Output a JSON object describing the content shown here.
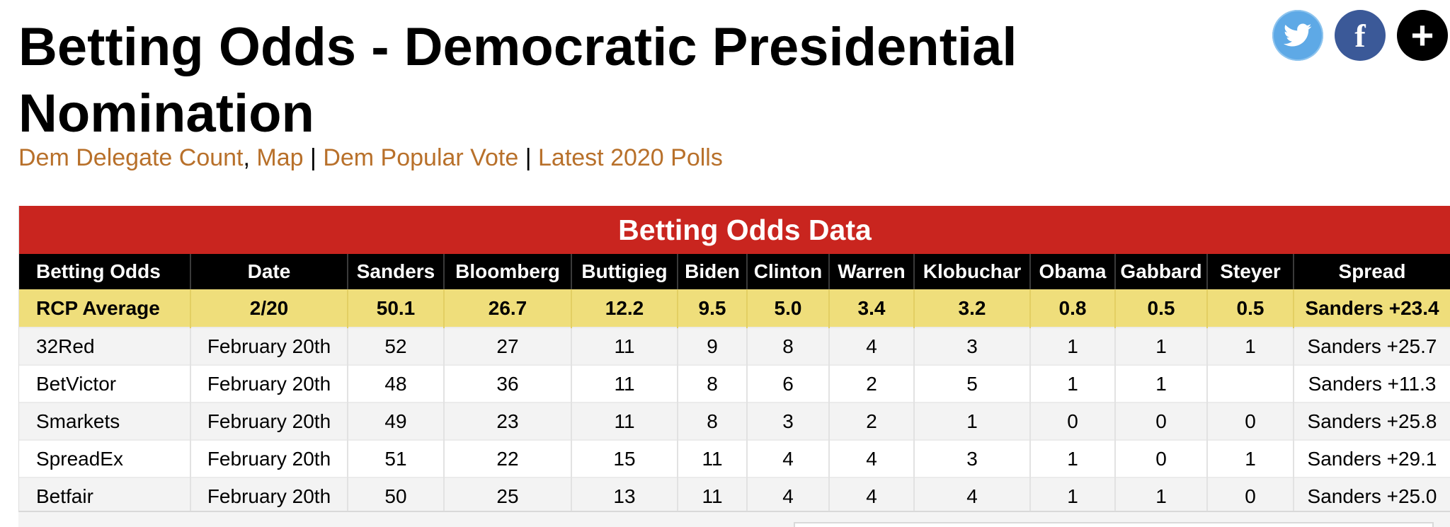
{
  "page": {
    "title": "Betting Odds - Democratic Presidential Nomination"
  },
  "subnav": {
    "links": [
      "Dem Delegate Count",
      "Map",
      "Dem Popular Vote",
      "Latest 2020 Polls"
    ],
    "sep_comma": ",",
    "sep_bar": "|"
  },
  "social": {
    "twitter_icon": "twitter-icon",
    "facebook_icon": "facebook-icon",
    "facebook_glyph": "f",
    "more_icon": "plus-icon",
    "more_glyph": "+"
  },
  "table": {
    "caption": "Betting Odds Data",
    "headers": [
      "Betting Odds",
      "Date",
      "Sanders",
      "Bloomberg",
      "Buttigieg",
      "Biden",
      "Clinton",
      "Warren",
      "Klobuchar",
      "Obama",
      "Gabbard",
      "Steyer",
      "Spread"
    ],
    "average": [
      "RCP Average",
      "2/20",
      "50.1",
      "26.7",
      "12.2",
      "9.5",
      "5.0",
      "3.4",
      "3.2",
      "0.8",
      "0.5",
      "0.5",
      "Sanders +23.4"
    ],
    "rows": [
      [
        "32Red",
        "February 20th",
        "52",
        "27",
        "11",
        "9",
        "8",
        "4",
        "3",
        "1",
        "1",
        "1",
        "Sanders +25.7"
      ],
      [
        "BetVictor",
        "February 20th",
        "48",
        "36",
        "11",
        "8",
        "6",
        "2",
        "5",
        "1",
        "1",
        "",
        "Sanders +11.3"
      ],
      [
        "Smarkets",
        "February 20th",
        "49",
        "23",
        "11",
        "8",
        "3",
        "2",
        "1",
        "0",
        "0",
        "0",
        "Sanders +25.8"
      ],
      [
        "SpreadEx",
        "February 20th",
        "51",
        "22",
        "15",
        "11",
        "4",
        "4",
        "3",
        "1",
        "0",
        "1",
        "Sanders +29.1"
      ],
      [
        "Betfair",
        "February 20th",
        "50",
        "25",
        "13",
        "11",
        "4",
        "4",
        "4",
        "1",
        "1",
        "0",
        "Sanders +25.0"
      ]
    ]
  },
  "colors": {
    "accent_red": "#c9251f",
    "link_orange": "#b8702a",
    "average_yellow": "#efde7b"
  }
}
